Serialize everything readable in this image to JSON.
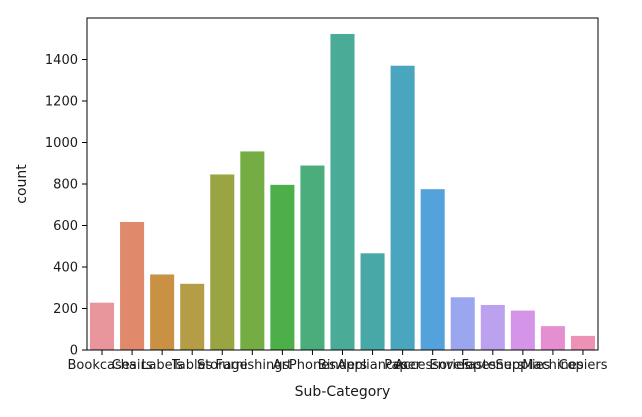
{
  "chart_data": {
    "type": "bar",
    "xlabel": "Sub-Category",
    "ylabel": "count",
    "categories": [
      "Bookcases",
      "Chairs",
      "Labels",
      "Tables",
      "Storage",
      "Furnishings",
      "Art",
      "Phones",
      "Binders",
      "Appliances",
      "Paper",
      "Accessories",
      "Envelopes",
      "Fasteners",
      "Supplies",
      "Machines",
      "Copiers"
    ],
    "values": [
      228,
      617,
      364,
      319,
      846,
      957,
      796,
      889,
      1523,
      466,
      1370,
      775,
      254,
      217,
      190,
      115,
      68
    ],
    "colors": [
      "#e8969b",
      "#e0896b",
      "#c99144",
      "#b59c46",
      "#9aa442",
      "#76ac44",
      "#4daf4a",
      "#4bad7c",
      "#4aab96",
      "#48a8a8",
      "#4aa6bf",
      "#53a2db",
      "#9aa6ee",
      "#bba1ee",
      "#d495e9",
      "#e58fd0",
      "#ec92b4"
    ],
    "ylim": [
      0,
      1600
    ],
    "yticks": [
      0,
      200,
      400,
      600,
      800,
      1000,
      1200,
      1400
    ]
  }
}
